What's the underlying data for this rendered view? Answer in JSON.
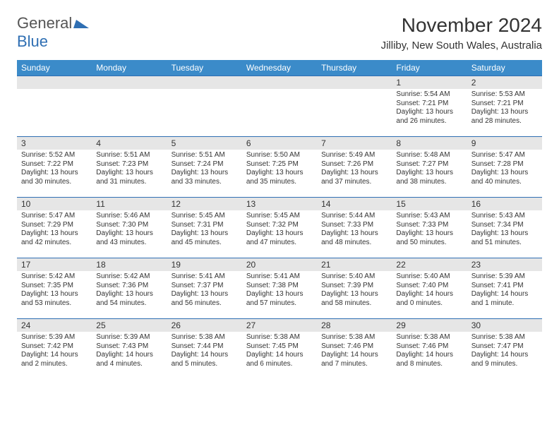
{
  "logo": {
    "text1": "General",
    "text2": "Blue",
    "color_general": "#555555",
    "color_blue": "#2f6fb3"
  },
  "title": "November 2024",
  "location": "Jilliby, New South Wales, Australia",
  "header_bg": "#3b8bc9",
  "header_fg": "#ffffff",
  "daynum_bg": "#e6e6e6",
  "border_color": "#2f6fb3",
  "weekdays": [
    "Sunday",
    "Monday",
    "Tuesday",
    "Wednesday",
    "Thursday",
    "Friday",
    "Saturday"
  ],
  "weeks": [
    [
      null,
      null,
      null,
      null,
      null,
      {
        "n": "1",
        "sr": "5:54 AM",
        "ss": "7:21 PM",
        "dl": "13 hours and 26 minutes."
      },
      {
        "n": "2",
        "sr": "5:53 AM",
        "ss": "7:21 PM",
        "dl": "13 hours and 28 minutes."
      }
    ],
    [
      {
        "n": "3",
        "sr": "5:52 AM",
        "ss": "7:22 PM",
        "dl": "13 hours and 30 minutes."
      },
      {
        "n": "4",
        "sr": "5:51 AM",
        "ss": "7:23 PM",
        "dl": "13 hours and 31 minutes."
      },
      {
        "n": "5",
        "sr": "5:51 AM",
        "ss": "7:24 PM",
        "dl": "13 hours and 33 minutes."
      },
      {
        "n": "6",
        "sr": "5:50 AM",
        "ss": "7:25 PM",
        "dl": "13 hours and 35 minutes."
      },
      {
        "n": "7",
        "sr": "5:49 AM",
        "ss": "7:26 PM",
        "dl": "13 hours and 37 minutes."
      },
      {
        "n": "8",
        "sr": "5:48 AM",
        "ss": "7:27 PM",
        "dl": "13 hours and 38 minutes."
      },
      {
        "n": "9",
        "sr": "5:47 AM",
        "ss": "7:28 PM",
        "dl": "13 hours and 40 minutes."
      }
    ],
    [
      {
        "n": "10",
        "sr": "5:47 AM",
        "ss": "7:29 PM",
        "dl": "13 hours and 42 minutes."
      },
      {
        "n": "11",
        "sr": "5:46 AM",
        "ss": "7:30 PM",
        "dl": "13 hours and 43 minutes."
      },
      {
        "n": "12",
        "sr": "5:45 AM",
        "ss": "7:31 PM",
        "dl": "13 hours and 45 minutes."
      },
      {
        "n": "13",
        "sr": "5:45 AM",
        "ss": "7:32 PM",
        "dl": "13 hours and 47 minutes."
      },
      {
        "n": "14",
        "sr": "5:44 AM",
        "ss": "7:33 PM",
        "dl": "13 hours and 48 minutes."
      },
      {
        "n": "15",
        "sr": "5:43 AM",
        "ss": "7:33 PM",
        "dl": "13 hours and 50 minutes."
      },
      {
        "n": "16",
        "sr": "5:43 AM",
        "ss": "7:34 PM",
        "dl": "13 hours and 51 minutes."
      }
    ],
    [
      {
        "n": "17",
        "sr": "5:42 AM",
        "ss": "7:35 PM",
        "dl": "13 hours and 53 minutes."
      },
      {
        "n": "18",
        "sr": "5:42 AM",
        "ss": "7:36 PM",
        "dl": "13 hours and 54 minutes."
      },
      {
        "n": "19",
        "sr": "5:41 AM",
        "ss": "7:37 PM",
        "dl": "13 hours and 56 minutes."
      },
      {
        "n": "20",
        "sr": "5:41 AM",
        "ss": "7:38 PM",
        "dl": "13 hours and 57 minutes."
      },
      {
        "n": "21",
        "sr": "5:40 AM",
        "ss": "7:39 PM",
        "dl": "13 hours and 58 minutes."
      },
      {
        "n": "22",
        "sr": "5:40 AM",
        "ss": "7:40 PM",
        "dl": "14 hours and 0 minutes."
      },
      {
        "n": "23",
        "sr": "5:39 AM",
        "ss": "7:41 PM",
        "dl": "14 hours and 1 minute."
      }
    ],
    [
      {
        "n": "24",
        "sr": "5:39 AM",
        "ss": "7:42 PM",
        "dl": "14 hours and 2 minutes."
      },
      {
        "n": "25",
        "sr": "5:39 AM",
        "ss": "7:43 PM",
        "dl": "14 hours and 4 minutes."
      },
      {
        "n": "26",
        "sr": "5:38 AM",
        "ss": "7:44 PM",
        "dl": "14 hours and 5 minutes."
      },
      {
        "n": "27",
        "sr": "5:38 AM",
        "ss": "7:45 PM",
        "dl": "14 hours and 6 minutes."
      },
      {
        "n": "28",
        "sr": "5:38 AM",
        "ss": "7:46 PM",
        "dl": "14 hours and 7 minutes."
      },
      {
        "n": "29",
        "sr": "5:38 AM",
        "ss": "7:46 PM",
        "dl": "14 hours and 8 minutes."
      },
      {
        "n": "30",
        "sr": "5:38 AM",
        "ss": "7:47 PM",
        "dl": "14 hours and 9 minutes."
      }
    ]
  ],
  "labels": {
    "sunrise": "Sunrise:",
    "sunset": "Sunset:",
    "daylight": "Daylight:"
  }
}
